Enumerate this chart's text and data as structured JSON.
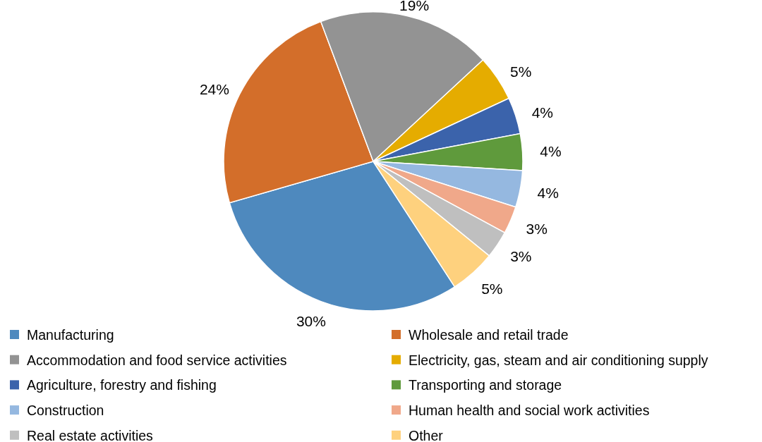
{
  "chart_data": {
    "type": "pie",
    "categories": [
      "Manufacturing",
      "Wholesale and retail trade",
      "Accommodation and food service activities",
      "Electricity, gas, steam and air conditioning supply",
      "Agriculture, forestry and fishing",
      "Transporting and storage",
      "Construction",
      "Human health and social work activities",
      "Real estate activities",
      "Other"
    ],
    "values": [
      30,
      24,
      19,
      5,
      4,
      4,
      4,
      3,
      3,
      5
    ],
    "colors": [
      "#4e89be",
      "#d36e2a",
      "#939393",
      "#e5ac00",
      "#3b63ab",
      "#5f9a3c",
      "#95b8e0",
      "#f0a88a",
      "#bfbfbf",
      "#fed17e"
    ],
    "value_labels": [
      "30%",
      "24%",
      "19%",
      "5%",
      "4%",
      "4%",
      "4%",
      "3%",
      "3%",
      "5%"
    ],
    "legend": "bottom"
  }
}
